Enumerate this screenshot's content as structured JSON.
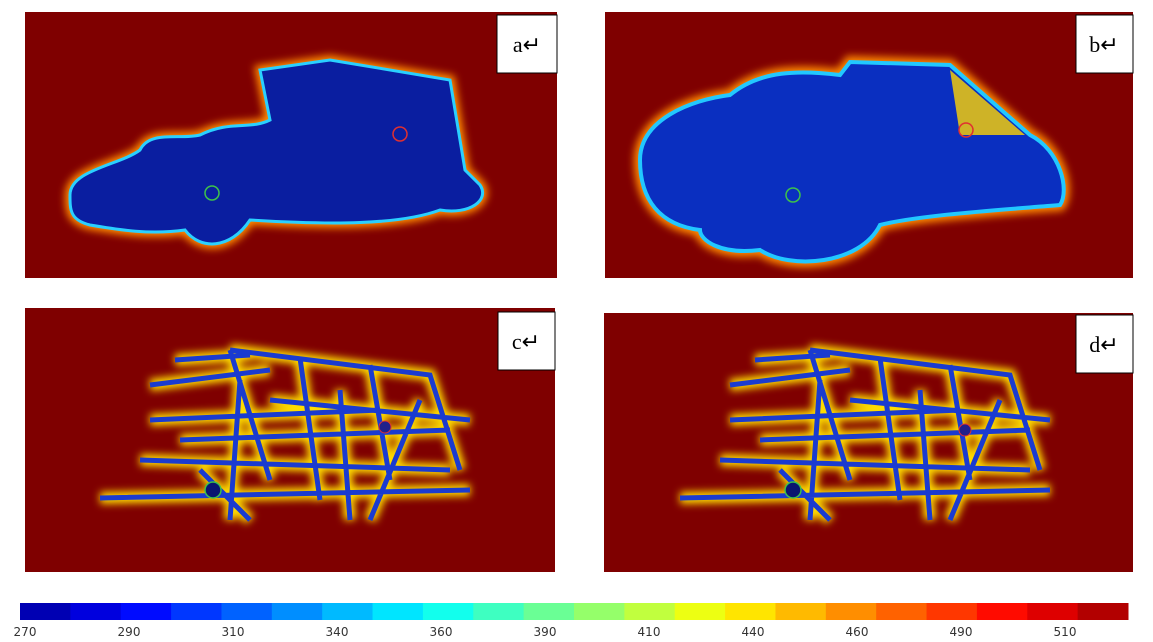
{
  "panels": [
    {
      "label": "a↵"
    },
    {
      "label": "b↵"
    },
    {
      "label": "c↵"
    },
    {
      "label": "d↵"
    }
  ],
  "colorbar": {
    "ticks": [
      "270",
      "290",
      "310",
      "340",
      "360",
      "390",
      "410",
      "440",
      "460",
      "490",
      "510"
    ]
  }
}
